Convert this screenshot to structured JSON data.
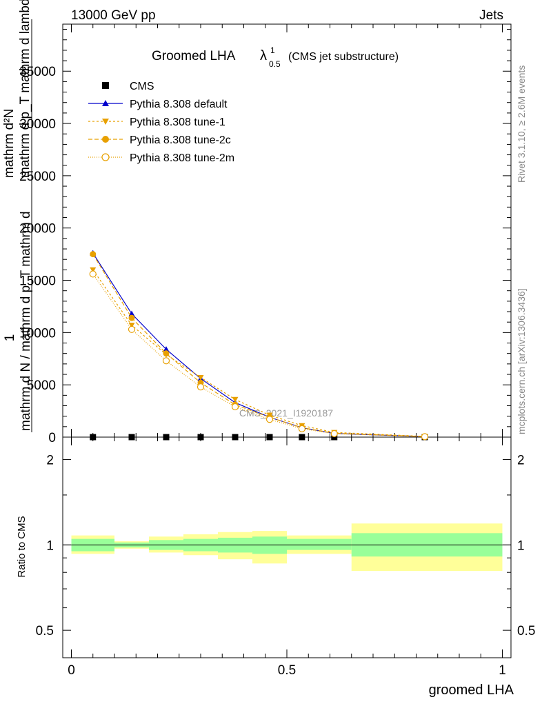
{
  "header": {
    "energy": "13000 GeV pp",
    "category": "Jets"
  },
  "title": {
    "main": "Groomed LHA",
    "lambda": "λ",
    "sup": "1",
    "sub": "0.5",
    "note": "(CMS jet substructure)"
  },
  "side": {
    "rivet": "Rivet 3.1.10, ≥ 2.6M events",
    "mcplots": "mcplots.cern.ch [arXiv:1306.3436]"
  },
  "watermark": "CMS_2021_I1920187",
  "ylabel_main": {
    "one": "1",
    "frac_bottom": "mathrm d N / mathrm d p_T mathrm d",
    "frac_top": "mathrm d²N",
    "frac_denom": "mathrm d p_T mathrm d lambda"
  },
  "ylabel_ratio": "Ratio to CMS",
  "xlabel": "groomed LHA",
  "colors": {
    "cms": "#000000",
    "default": "#0000cc",
    "tune": "#e8a000",
    "band_inner": "#99ff99",
    "band_outer": "#ffff99"
  },
  "chart_data": [
    {
      "type": "line",
      "panel": "main",
      "x": [
        0.05,
        0.14,
        0.22,
        0.3,
        0.38,
        0.46,
        0.535,
        0.61,
        0.82
      ],
      "xlim": [
        -0.02,
        1.02
      ],
      "ylim": [
        0,
        39500
      ],
      "yticks": [
        0,
        5000,
        10000,
        15000,
        20000,
        25000,
        30000,
        35000
      ],
      "ytick_labels": [
        "0",
        "5000",
        "10000",
        "15000",
        "20000",
        "25000",
        "30000",
        "35000"
      ],
      "series": [
        {
          "name": "CMS",
          "marker": "square",
          "values": [
            0,
            0,
            0,
            0,
            0,
            0,
            0,
            0,
            0
          ]
        },
        {
          "name": "Pythia 8.308 default",
          "marker": "triangle-up",
          "dash": "",
          "values": [
            17600,
            11800,
            8400,
            5600,
            3300,
            1900,
            900,
            350,
            50
          ]
        },
        {
          "name": "Pythia 8.308 tune-1",
          "marker": "triangle-down",
          "dash": "3,3",
          "values": [
            16000,
            10700,
            7900,
            5700,
            3600,
            2100,
            1100,
            450,
            70
          ]
        },
        {
          "name": "Pythia 8.308 tune-2c",
          "marker": "circle",
          "dash": "6,3",
          "values": [
            17500,
            11400,
            8000,
            5200,
            3100,
            1900,
            900,
            370,
            50
          ]
        },
        {
          "name": "Pythia 8.308 tune-2m",
          "marker": "circle-open",
          "dash": "1,2",
          "values": [
            15600,
            10300,
            7300,
            4800,
            2900,
            1700,
            800,
            330,
            40
          ]
        }
      ]
    },
    {
      "type": "bar",
      "panel": "ratio",
      "ylim": [
        0.4,
        2.4
      ],
      "yticks": [
        0.5,
        1,
        2
      ],
      "ytick_labels": [
        "0.5",
        "1",
        "2"
      ],
      "xticks": [
        0,
        0.5,
        1
      ],
      "xtick_labels": [
        "0",
        "0.5",
        "1"
      ],
      "reference": 1,
      "bins": [
        {
          "lo": 0.0,
          "hi": 0.1,
          "inner": [
            0.95,
            1.05
          ],
          "outer": [
            0.93,
            1.08
          ]
        },
        {
          "lo": 0.1,
          "hi": 0.18,
          "inner": [
            0.98,
            1.02
          ],
          "outer": [
            0.97,
            1.03
          ]
        },
        {
          "lo": 0.18,
          "hi": 0.26,
          "inner": [
            0.96,
            1.04
          ],
          "outer": [
            0.94,
            1.07
          ]
        },
        {
          "lo": 0.26,
          "hi": 0.34,
          "inner": [
            0.95,
            1.05
          ],
          "outer": [
            0.92,
            1.09
          ]
        },
        {
          "lo": 0.34,
          "hi": 0.42,
          "inner": [
            0.94,
            1.06
          ],
          "outer": [
            0.89,
            1.11
          ]
        },
        {
          "lo": 0.42,
          "hi": 0.5,
          "inner": [
            0.93,
            1.07
          ],
          "outer": [
            0.86,
            1.12
          ]
        },
        {
          "lo": 0.5,
          "hi": 0.58,
          "inner": [
            0.96,
            1.05
          ],
          "outer": [
            0.93,
            1.08
          ]
        },
        {
          "lo": 0.58,
          "hi": 0.65,
          "inner": [
            0.96,
            1.05
          ],
          "outer": [
            0.93,
            1.08
          ]
        },
        {
          "lo": 0.65,
          "hi": 1.0,
          "inner": [
            0.91,
            1.1
          ],
          "outer": [
            0.81,
            1.19
          ]
        }
      ]
    }
  ]
}
